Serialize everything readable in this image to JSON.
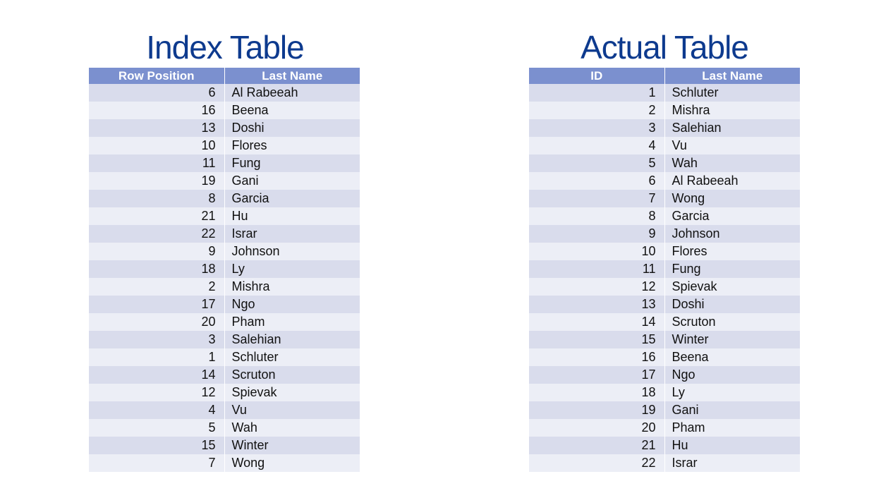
{
  "index_table": {
    "title": "Index Table",
    "headers": [
      "Row Position",
      "Last Name"
    ],
    "rows": [
      [
        "6",
        "Al Rabeeah"
      ],
      [
        "16",
        "Beena"
      ],
      [
        "13",
        "Doshi"
      ],
      [
        "10",
        "Flores"
      ],
      [
        "11",
        "Fung"
      ],
      [
        "19",
        "Gani"
      ],
      [
        "8",
        "Garcia"
      ],
      [
        "21",
        "Hu"
      ],
      [
        "22",
        "Israr"
      ],
      [
        "9",
        "Johnson"
      ],
      [
        "18",
        "Ly"
      ],
      [
        "2",
        "Mishra"
      ],
      [
        "17",
        "Ngo"
      ],
      [
        "20",
        "Pham"
      ],
      [
        "3",
        "Salehian"
      ],
      [
        "1",
        "Schluter"
      ],
      [
        "14",
        "Scruton"
      ],
      [
        "12",
        "Spievak"
      ],
      [
        "4",
        "Vu"
      ],
      [
        "5",
        "Wah"
      ],
      [
        "15",
        "Winter"
      ],
      [
        "7",
        "Wong"
      ]
    ]
  },
  "actual_table": {
    "title": "Actual Table",
    "headers": [
      "ID",
      "Last Name"
    ],
    "rows": [
      [
        "1",
        "Schluter"
      ],
      [
        "2",
        "Mishra"
      ],
      [
        "3",
        "Salehian"
      ],
      [
        "4",
        "Vu"
      ],
      [
        "5",
        "Wah"
      ],
      [
        "6",
        "Al Rabeeah"
      ],
      [
        "7",
        "Wong"
      ],
      [
        "8",
        "Garcia"
      ],
      [
        "9",
        "Johnson"
      ],
      [
        "10",
        "Flores"
      ],
      [
        "11",
        "Fung"
      ],
      [
        "12",
        "Spievak"
      ],
      [
        "13",
        "Doshi"
      ],
      [
        "14",
        "Scruton"
      ],
      [
        "15",
        "Winter"
      ],
      [
        "16",
        "Beena"
      ],
      [
        "17",
        "Ngo"
      ],
      [
        "18",
        "Ly"
      ],
      [
        "19",
        "Gani"
      ],
      [
        "20",
        "Pham"
      ],
      [
        "21",
        "Hu"
      ],
      [
        "22",
        "Israr"
      ]
    ]
  },
  "colors": {
    "title": "#0d3a8e",
    "header_bg": "#7b90cf",
    "row_odd": "#d9dcec",
    "row_even": "#eceef6"
  }
}
